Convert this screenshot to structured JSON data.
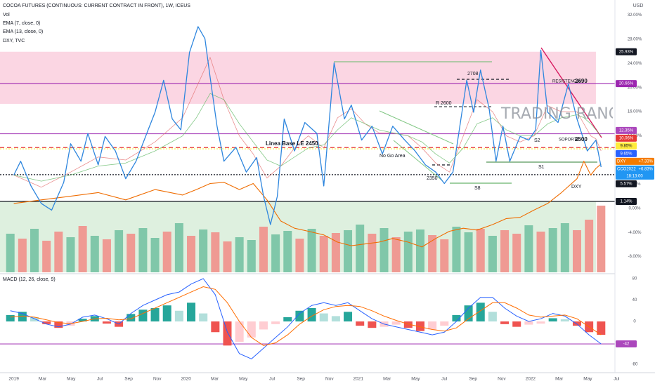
{
  "chart_data": [
    {
      "type": "line",
      "title": "COCOA FUTURES (CONTINUOUS: CURRENT CONTRACT IN FRONT), 1W, ICEUS",
      "unit": "USD",
      "xlim": [
        2018.92,
        2022.47
      ],
      "ylim": [
        -10.6,
        34.5
      ],
      "xticks": [
        2019,
        {
          "value": 2019.167,
          "label": "Mar"
        },
        {
          "value": 2019.333,
          "label": "May"
        },
        {
          "value": 2019.5,
          "label": "Jul"
        },
        {
          "value": 2019.667,
          "label": "Sep"
        },
        {
          "value": 2019.833,
          "label": "Nov"
        },
        2020,
        {
          "value": 2020.167,
          "label": "Mar"
        },
        {
          "value": 2020.333,
          "label": "May"
        },
        {
          "value": 2020.5,
          "label": "Jul"
        },
        {
          "value": 2020.667,
          "label": "Sep"
        },
        {
          "value": 2020.833,
          "label": "Nov"
        },
        2021,
        {
          "value": 2021.167,
          "label": "Mar"
        },
        {
          "value": 2021.333,
          "label": "May"
        },
        {
          "value": 2021.5,
          "label": "Jul"
        },
        {
          "value": 2021.667,
          "label": "Sep"
        },
        {
          "value": 2021.833,
          "label": "Nov"
        },
        2022,
        {
          "value": 2022.167,
          "label": "Mar"
        },
        {
          "value": 2022.333,
          "label": "May"
        },
        {
          "value": 2022.5,
          "label": "Jul"
        }
      ],
      "yticks": [
        {
          "value": 32,
          "label": "32.00%"
        },
        {
          "value": 28,
          "label": "28.00%"
        },
        {
          "value": 24,
          "label": "24.00%"
        },
        {
          "value": 20,
          "label": "20.00%"
        },
        {
          "value": 16,
          "label": "16.00%"
        },
        {
          "value": 12,
          "label": "12.00%"
        },
        {
          "value": 8,
          "label": "8.00%"
        },
        {
          "value": 4,
          "label": "4.00%"
        },
        {
          "value": 0,
          "label": "0.00%"
        },
        {
          "value": -4,
          "label": "-4.00%"
        },
        {
          "value": -8,
          "label": "-8.00%"
        }
      ],
      "zones": [
        {
          "from": 25.93,
          "to": 17.3,
          "x_end": 2022.38,
          "color": "#f8bbd0"
        },
        {
          "from": 1.14,
          "to": -10.6,
          "x_end": 2022.38,
          "color": "#c8e6c9"
        }
      ],
      "series": [
        {
          "name": "EMA (7, close, 0)",
          "color": "#e57373",
          "x": [
            2019.0,
            2019.16,
            2019.33,
            2019.49,
            2019.65,
            2019.82,
            2019.98,
            2020.06,
            2020.14,
            2020.22,
            2020.31,
            2020.39,
            2020.47,
            2020.55,
            2020.63,
            2020.71,
            2020.8,
            2020.88,
            2020.96,
            2021.04,
            2021.12,
            2021.2,
            2021.29,
            2021.37,
            2021.45,
            2021.53,
            2021.61,
            2021.69,
            2021.78,
            2021.86,
            2021.94,
            2022.02,
            2022.1,
            2022.18,
            2022.27,
            2022.31,
            2022.35,
            2022.38,
            2022.41
          ],
          "values": [
            5.5,
            3.5,
            6,
            8.5,
            8,
            11,
            15,
            20,
            25,
            18,
            12,
            9,
            5,
            7,
            10,
            12,
            10,
            15,
            16.5,
            14,
            12.5,
            12.5,
            12,
            10,
            7.5,
            6,
            12,
            18,
            16,
            12,
            11,
            12,
            17,
            16,
            16,
            14,
            12,
            11.5,
            9.5
          ]
        },
        {
          "name": "EMA (13, close, 0)",
          "color": "#66bb6a",
          "x": [
            2019.0,
            2019.16,
            2019.33,
            2019.49,
            2019.65,
            2019.82,
            2019.98,
            2020.06,
            2020.14,
            2020.22,
            2020.31,
            2020.39,
            2020.47,
            2020.55,
            2020.63,
            2020.71,
            2020.8,
            2020.88,
            2020.96,
            2021.04,
            2021.12,
            2021.2,
            2021.29,
            2021.37,
            2021.45,
            2021.53,
            2021.61,
            2021.69,
            2021.78,
            2021.86,
            2021.94,
            2022.02,
            2022.1,
            2022.18,
            2022.27,
            2022.31,
            2022.35,
            2022.38,
            2022.41
          ],
          "values": [
            5.5,
            4.5,
            5.5,
            7,
            7.5,
            9.5,
            12,
            15,
            19,
            18,
            14,
            11,
            8,
            7,
            8.5,
            10,
            10.5,
            13,
            15,
            14,
            13,
            12.5,
            12,
            11,
            9,
            7.5,
            10,
            14,
            15,
            13,
            12,
            12,
            14,
            15,
            15.5,
            15,
            14,
            13,
            12
          ]
        },
        {
          "name": "DXY, TVC",
          "color": "#ef6c00",
          "x": [
            2019.0,
            2019.16,
            2019.33,
            2019.49,
            2019.65,
            2019.82,
            2019.98,
            2020.06,
            2020.14,
            2020.22,
            2020.31,
            2020.39,
            2020.47,
            2020.55,
            2020.63,
            2020.71,
            2020.8,
            2020.88,
            2020.96,
            2021.04,
            2021.12,
            2021.2,
            2021.29,
            2021.37,
            2021.45,
            2021.53,
            2021.61,
            2021.69,
            2021.78,
            2021.86,
            2021.94,
            2022.02,
            2022.1,
            2022.18,
            2022.27,
            2022.31,
            2022.35,
            2022.38,
            2022.41
          ],
          "values": [
            0.8,
            1.4,
            2.0,
            2.6,
            1.4,
            3.1,
            2.2,
            3.1,
            4.1,
            4.3,
            3.1,
            4.1,
            1.4,
            -2.1,
            -3.3,
            -3.8,
            -4.4,
            -5.6,
            -6.2,
            -5.9,
            -5.6,
            -5.0,
            -5.6,
            -6.4,
            -5.0,
            -3.8,
            -3.3,
            -3.6,
            -2.7,
            -1.7,
            -1.5,
            -0.3,
            0.8,
            2.6,
            4.9,
            7.8,
            5.5,
            6.6,
            7.33
          ]
        },
        {
          "color": "#2e86de",
          "x": [
            2019.0,
            2019.04,
            2019.1,
            2019.16,
            2019.22,
            2019.29,
            2019.33,
            2019.39,
            2019.43,
            2019.49,
            2019.53,
            2019.59,
            2019.65,
            2019.71,
            2019.78,
            2019.82,
            2019.87,
            2019.92,
            2019.97,
            2020.02,
            2020.07,
            2020.11,
            2020.14,
            2020.18,
            2020.22,
            2020.29,
            2020.35,
            2020.41,
            2020.45,
            2020.49,
            2020.53,
            2020.57,
            2020.63,
            2020.69,
            2020.76,
            2020.8,
            2020.86,
            2020.92,
            2020.96,
            2021.02,
            2021.08,
            2021.14,
            2021.2,
            2021.27,
            2021.33,
            2021.39,
            2021.45,
            2021.5,
            2021.55,
            2021.59,
            2021.63,
            2021.67,
            2021.71,
            2021.76,
            2021.8,
            2021.84,
            2021.88,
            2021.94,
            2021.99,
            2022.03,
            2022.06,
            2022.1,
            2022.16,
            2022.22,
            2022.27,
            2022.33,
            2022.38,
            2022.41
          ],
          "values": [
            5.5,
            7.8,
            3.7,
            0.8,
            -0.3,
            4.3,
            10.7,
            7.8,
            12.4,
            7.2,
            11.9,
            9.5,
            4.9,
            7.8,
            13,
            15.9,
            21.2,
            14.8,
            13,
            25.8,
            30.1,
            28.1,
            21.7,
            13.6,
            7.8,
            10.1,
            6,
            8.4,
            2,
            -2.7,
            2,
            14.8,
            9.5,
            14.2,
            12.4,
            3.7,
            24.1,
            14.8,
            17.1,
            11.3,
            13.6,
            9,
            13.6,
            11.3,
            9.5,
            7.2,
            6,
            4.1,
            6,
            13.6,
            21.2,
            15.9,
            22.9,
            16.5,
            7.8,
            13.6,
            7.8,
            11.9,
            11.3,
            13,
            26.2,
            15.9,
            14.2,
            20.6,
            14.8,
            9.5,
            11.3,
            6.83
          ]
        }
      ],
      "price_labels": [
        {
          "value": 25.93,
          "label": "25.93%",
          "color": "#131722"
        },
        {
          "value": 20.66,
          "label": "20.66%",
          "color": "#9c27b0",
          "line": "solid"
        },
        {
          "value": 12.35,
          "label": "12.35%",
          "color": "#ab47bc",
          "line": "solid"
        },
        {
          "value": 10.06,
          "label": "10.06%",
          "color": "#e53935",
          "line": "dashed"
        },
        {
          "value": 9.85,
          "label": "9.85%",
          "color": "#ffeb3b",
          "line": "dotted"
        },
        {
          "value": 9.65,
          "label": "9.65%",
          "color": "#2962ff"
        },
        {
          "name": "DXY",
          "value": 7.33,
          "label": "+7.33%",
          "color": "#f57c00"
        },
        {
          "name": "CCO2022",
          "value": 6.83,
          "label": "+6.83%",
          "sub": "18:13:00",
          "color": "#2196f3"
        },
        {
          "value": 5.57,
          "label": "5.57%",
          "color": "#131722",
          "line": "dotted"
        },
        {
          "value": 1.14,
          "label": "1.14%",
          "color": "#131722",
          "line": "solid"
        }
      ],
      "annotations": [
        "Linea Base LE 2450",
        "No Go Area",
        "R 2600",
        "2708",
        "RESISTENCIA",
        "2690",
        "SOPORTE",
        "2500",
        "S2",
        "S1",
        "S8",
        "2350",
        "DXY",
        "TRADING RANGE / RANGO"
      ]
    },
    {
      "type": "bar",
      "title": "Vol",
      "ylim": [
        0,
        100
      ],
      "x": [
        2018.98,
        2019.05,
        2019.12,
        2019.19,
        2019.26,
        2019.33,
        2019.4,
        2019.47,
        2019.54,
        2019.61,
        2019.68,
        2019.75,
        2019.82,
        2019.89,
        2019.96,
        2020.03,
        2020.1,
        2020.17,
        2020.24,
        2020.31,
        2020.38,
        2020.45,
        2020.52,
        2020.59,
        2020.66,
        2020.73,
        2020.8,
        2020.87,
        2020.94,
        2021.01,
        2021.08,
        2021.15,
        2021.22,
        2021.29,
        2021.36,
        2021.43,
        2021.5,
        2021.57,
        2021.64,
        2021.71,
        2021.78,
        2021.85,
        2021.92,
        2021.99,
        2022.06,
        2022.13,
        2022.2,
        2022.27,
        2022.34,
        2022.41
      ],
      "values": [
        55,
        48,
        62,
        45,
        58,
        50,
        66,
        52,
        47,
        60,
        55,
        63,
        49,
        58,
        70,
        52,
        61,
        57,
        44,
        50,
        46,
        65,
        54,
        59,
        48,
        62,
        52,
        56,
        60,
        68,
        55,
        63,
        50,
        58,
        61,
        53,
        47,
        65,
        57,
        62,
        52,
        60,
        55,
        67,
        58,
        63,
        70,
        60,
        75,
        95
      ],
      "colors": [
        "#80c7a9",
        "#ef9a93",
        "#80c7a9",
        "#ef9a93",
        "#ef9a93",
        "#80c7a9",
        "#ef9a93",
        "#80c7a9",
        "#ef9a93",
        "#80c7a9",
        "#ef9a93",
        "#80c7a9",
        "#80c7a9",
        "#ef9a93",
        "#80c7a9",
        "#ef9a93",
        "#80c7a9",
        "#ef9a93",
        "#ef9a93",
        "#80c7a9",
        "#80c7a9",
        "#ef9a93",
        "#80c7a9",
        "#80c7a9",
        "#ef9a93",
        "#80c7a9",
        "#ef9a93",
        "#ef9a93",
        "#80c7a9",
        "#80c7a9",
        "#ef9a93",
        "#80c7a9",
        "#ef9a93",
        "#80c7a9",
        "#80c7a9",
        "#ef9a93",
        "#ef9a93",
        "#80c7a9",
        "#80c7a9",
        "#ef9a93",
        "#80c7a9",
        "#ef9a93",
        "#ef9a93",
        "#80c7a9",
        "#ef9a93",
        "#80c7a9",
        "#80c7a9",
        "#ef9a93",
        "#ef9a93",
        "#ef9a93"
      ]
    },
    {
      "type": "macd",
      "title": "MACD (12, 26, close, 9)",
      "ylim": [
        -94.4,
        86.6
      ],
      "yticks": [
        80,
        40,
        0,
        -80
      ],
      "x": [
        2018.98,
        2019.05,
        2019.12,
        2019.19,
        2019.26,
        2019.33,
        2019.4,
        2019.47,
        2019.54,
        2019.61,
        2019.68,
        2019.75,
        2019.82,
        2019.89,
        2019.96,
        2020.03,
        2020.1,
        2020.17,
        2020.24,
        2020.31,
        2020.38,
        2020.45,
        2020.52,
        2020.59,
        2020.66,
        2020.73,
        2020.8,
        2020.87,
        2020.94,
        2021.01,
        2021.08,
        2021.15,
        2021.22,
        2021.29,
        2021.36,
        2021.43,
        2021.5,
        2021.57,
        2021.64,
        2021.71,
        2021.78,
        2021.85,
        2021.92,
        2021.99,
        2022.06,
        2022.13,
        2022.2,
        2022.27,
        2022.34,
        2022.41
      ],
      "histogram": {
        "values": [
          12,
          18,
          8,
          -5,
          -12,
          -8,
          5,
          10,
          -4,
          -10,
          14,
          22,
          25,
          30,
          20,
          35,
          15,
          -20,
          -45,
          -38,
          -30,
          -15,
          -5,
          8,
          20,
          25,
          15,
          10,
          18,
          -8,
          -12,
          -10,
          -6,
          -12,
          -18,
          -15,
          -8,
          12,
          30,
          35,
          18,
          -5,
          -10,
          -6,
          -4,
          6,
          4,
          -8,
          -20,
          -25
        ],
        "colors": {
          "up": "#26a69a",
          "up_fading": "#b2dfdb",
          "down": "#ef5350",
          "down_fading": "#ffcdd2"
        }
      },
      "series": [
        {
          "color": "#2962ff",
          "values": [
            20,
            15,
            5,
            -5,
            -10,
            -5,
            8,
            12,
            5,
            -5,
            15,
            30,
            40,
            50,
            55,
            70,
            80,
            50,
            -20,
            -60,
            -70,
            -50,
            -30,
            -10,
            15,
            30,
            35,
            30,
            35,
            20,
            5,
            -5,
            -10,
            -15,
            -20,
            -25,
            -20,
            0,
            25,
            45,
            45,
            25,
            10,
            0,
            5,
            15,
            10,
            -5,
            -25,
            -42
          ]
        },
        {
          "color": "#ff6d00",
          "values": [
            8,
            10,
            8,
            3,
            -2,
            -4,
            0,
            5,
            6,
            3,
            5,
            15,
            25,
            35,
            45,
            55,
            65,
            60,
            35,
            0,
            -30,
            -45,
            -40,
            -25,
            -5,
            10,
            22,
            28,
            30,
            28,
            20,
            10,
            2,
            -5,
            -10,
            -15,
            -18,
            -12,
            5,
            20,
            35,
            35,
            25,
            12,
            8,
            10,
            12,
            5,
            -10,
            -25
          ]
        }
      ],
      "price_labels": [
        {
          "value": -42,
          "label": "-42",
          "color": "#ab47bc",
          "line": "solid"
        }
      ]
    }
  ]
}
